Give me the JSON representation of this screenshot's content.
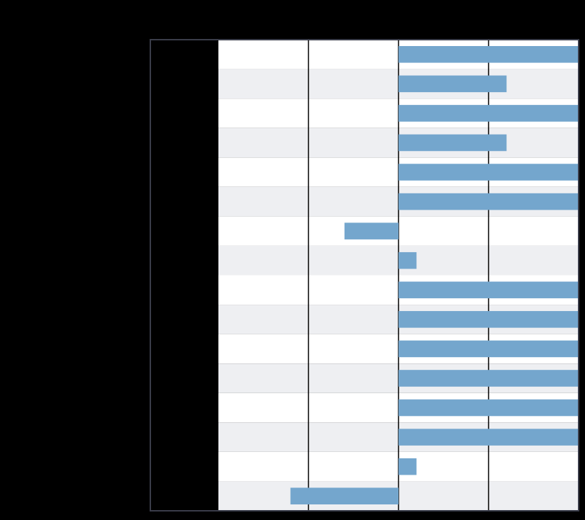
{
  "colors": {
    "background": "#000000",
    "frame": "#3a3d4a",
    "label_column": "#000000",
    "row_light": "#ffffff",
    "row_alt": "#eeeff2",
    "gridline": "#000000",
    "bar": "#74a6cd"
  },
  "chart_data": {
    "type": "bar",
    "orientation": "horizontal",
    "title": "",
    "xlabel": "",
    "ylabel": "",
    "categories": [
      "",
      "",
      "",
      "",
      "",
      "",
      "",
      "",
      "",
      "",
      "",
      "",
      "",
      "",
      "",
      ""
    ],
    "values": [
      2,
      1.2,
      2,
      1.2,
      2,
      2,
      -0.6,
      0.2,
      2,
      2,
      2,
      2,
      2,
      2,
      0.2,
      -1.2
    ],
    "xlim": [
      -2,
      2
    ],
    "grid": true,
    "legend": "none"
  }
}
